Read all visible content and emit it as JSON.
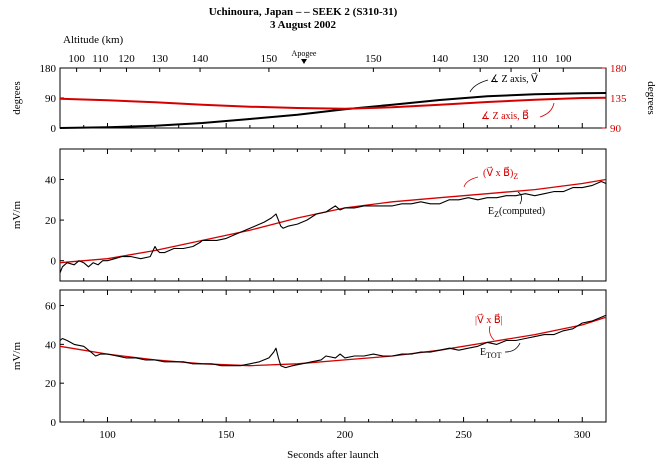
{
  "title": "Uchinoura, Japan – – SEEK 2 (S310-31)",
  "date": "3 August 2002",
  "altitude_axis": {
    "label": "Altitude (km)",
    "ticks": [
      {
        "t": 87,
        "label": "100"
      },
      {
        "t": 97,
        "label": "110"
      },
      {
        "t": 108,
        "label": "120"
      },
      {
        "t": 122,
        "label": "130"
      },
      {
        "t": 139,
        "label": "140"
      },
      {
        "t": 168,
        "label": "150"
      },
      {
        "t": 212,
        "label": "150"
      },
      {
        "t": 240,
        "label": "140"
      },
      {
        "t": 257,
        "label": "130"
      },
      {
        "t": 270,
        "label": "120"
      },
      {
        "t": 282,
        "label": "110"
      },
      {
        "t": 292,
        "label": "100"
      }
    ],
    "apogee_label": "Apogee",
    "apogee_t": 193
  },
  "xaxis": {
    "label": "Seconds after launch",
    "range": [
      80,
      310
    ],
    "ticks": [
      "100",
      "150",
      "200",
      "250",
      "300"
    ]
  },
  "chart_data": [
    {
      "type": "line",
      "panel": "angles",
      "ylabel": "degrees",
      "ylabel_right": "degrees",
      "ylim": [
        0,
        180
      ],
      "yticks": [
        "0",
        "90",
        "180"
      ],
      "ylim_right": [
        90,
        180
      ],
      "yticks_right": [
        "90",
        "135",
        "180"
      ],
      "series": [
        {
          "name": "∡ Z axis, V⃗",
          "color": "#000000",
          "x": [
            80,
            100,
            120,
            140,
            160,
            180,
            200,
            220,
            240,
            260,
            280,
            300,
            310
          ],
          "y": [
            0,
            2,
            7,
            15,
            27,
            40,
            56,
            70,
            84,
            95,
            101,
            104,
            105
          ]
        },
        {
          "name": "∡ Z axis, B⃗",
          "color": "#d40000",
          "x": [
            80,
            100,
            120,
            140,
            160,
            180,
            200,
            220,
            240,
            260,
            280,
            300,
            310
          ],
          "y": [
            88,
            83,
            77,
            70,
            64,
            60,
            58,
            62,
            70,
            78,
            85,
            90,
            91
          ]
        }
      ],
      "annotations": [
        {
          "text": "∡ Z axis, V⃗",
          "color": "#000000"
        },
        {
          "text": "∡ Z axis, B⃗",
          "color": "#d40000"
        }
      ]
    },
    {
      "type": "line",
      "panel": "ez",
      "ylabel": "mV/m",
      "ylim": [
        -10,
        55
      ],
      "yticks": [
        "0",
        "20",
        "40"
      ],
      "series": [
        {
          "name": "(V⃗ x B⃗)Z",
          "color": "#d40000",
          "x": [
            80,
            100,
            120,
            140,
            160,
            180,
            200,
            220,
            240,
            260,
            280,
            300,
            310
          ],
          "y": [
            -1,
            1,
            5,
            10,
            15,
            21,
            26,
            29,
            31,
            33,
            35,
            38,
            40
          ]
        },
        {
          "name": "EZ(computed)",
          "color": "#000000",
          "x": [
            80,
            81,
            83,
            86,
            88,
            90,
            92,
            94,
            96,
            98,
            100,
            103,
            106,
            110,
            114,
            118,
            120,
            121,
            122,
            124,
            128,
            132,
            136,
            139,
            140,
            142,
            146,
            150,
            154,
            158,
            162,
            166,
            169,
            171,
            172,
            173,
            174,
            176,
            180,
            184,
            188,
            192,
            196,
            198,
            200,
            204,
            208,
            212,
            216,
            220,
            224,
            228,
            232,
            236,
            240,
            244,
            248,
            252,
            256,
            260,
            264,
            268,
            272,
            276,
            280,
            284,
            288,
            292,
            296,
            300,
            304,
            308,
            310
          ],
          "y": [
            -6,
            -3,
            -1,
            -2,
            0,
            -1,
            -3,
            -1,
            -2,
            0,
            0,
            1,
            2,
            2,
            1,
            2,
            7,
            5,
            4,
            4,
            6,
            6,
            7,
            9,
            10,
            10,
            10,
            11,
            13,
            15,
            17,
            19,
            21,
            23,
            20,
            17,
            16,
            17,
            18,
            20,
            23,
            24,
            27,
            25,
            26,
            26,
            27,
            27,
            27,
            27,
            28,
            28,
            29,
            28,
            28,
            30,
            30,
            31,
            30,
            31,
            31,
            32,
            32,
            33,
            32,
            33,
            34,
            34,
            36,
            36,
            37,
            39,
            38
          ]
        }
      ],
      "annotations": [
        {
          "text": "(V⃗ x B⃗)",
          "sub": "Z",
          "color": "#d40000"
        },
        {
          "text": "E",
          "sub": "Z",
          "after": "(computed)",
          "color": "#000000"
        }
      ]
    },
    {
      "type": "line",
      "panel": "etot",
      "ylabel": "mV/m",
      "ylim": [
        0,
        68
      ],
      "yticks": [
        "0",
        "20",
        "40",
        "60"
      ],
      "series": [
        {
          "name": "|V⃗ x B⃗|",
          "color": "#d40000",
          "x": [
            80,
            100,
            120,
            140,
            160,
            180,
            200,
            220,
            240,
            260,
            280,
            300,
            310
          ],
          "y": [
            39,
            35,
            32,
            30,
            29,
            30,
            32,
            34,
            37,
            41,
            45,
            50,
            54
          ]
        },
        {
          "name": "ETOT",
          "color": "#000000",
          "x": [
            80,
            81,
            83,
            86,
            90,
            93,
            95,
            97,
            100,
            104,
            108,
            112,
            116,
            120,
            124,
            128,
            132,
            136,
            140,
            144,
            148,
            152,
            156,
            160,
            164,
            168,
            170,
            171,
            172,
            173,
            175,
            178,
            182,
            186,
            190,
            192,
            196,
            198,
            200,
            204,
            208,
            212,
            216,
            220,
            224,
            228,
            232,
            236,
            240,
            244,
            248,
            252,
            256,
            260,
            264,
            268,
            272,
            276,
            280,
            284,
            288,
            292,
            296,
            300,
            304,
            308,
            310
          ],
          "y": [
            42,
            43,
            42,
            40,
            39,
            36,
            34,
            35,
            35,
            34,
            33,
            33,
            32,
            32,
            31,
            31,
            31,
            30,
            30,
            30,
            29,
            29,
            29,
            30,
            31,
            33,
            36,
            38,
            33,
            29,
            28,
            29,
            30,
            31,
            32,
            34,
            33,
            35,
            33,
            34,
            34,
            35,
            34,
            34,
            35,
            35,
            36,
            36,
            37,
            38,
            37,
            38,
            39,
            41,
            40,
            42,
            42,
            43,
            44,
            45,
            45,
            47,
            48,
            51,
            52,
            54,
            55
          ]
        }
      ],
      "annotations": [
        {
          "text": "|V⃗ x B⃗|",
          "color": "#d40000"
        },
        {
          "text": "E",
          "sub": "TOT",
          "color": "#000000"
        }
      ]
    }
  ]
}
